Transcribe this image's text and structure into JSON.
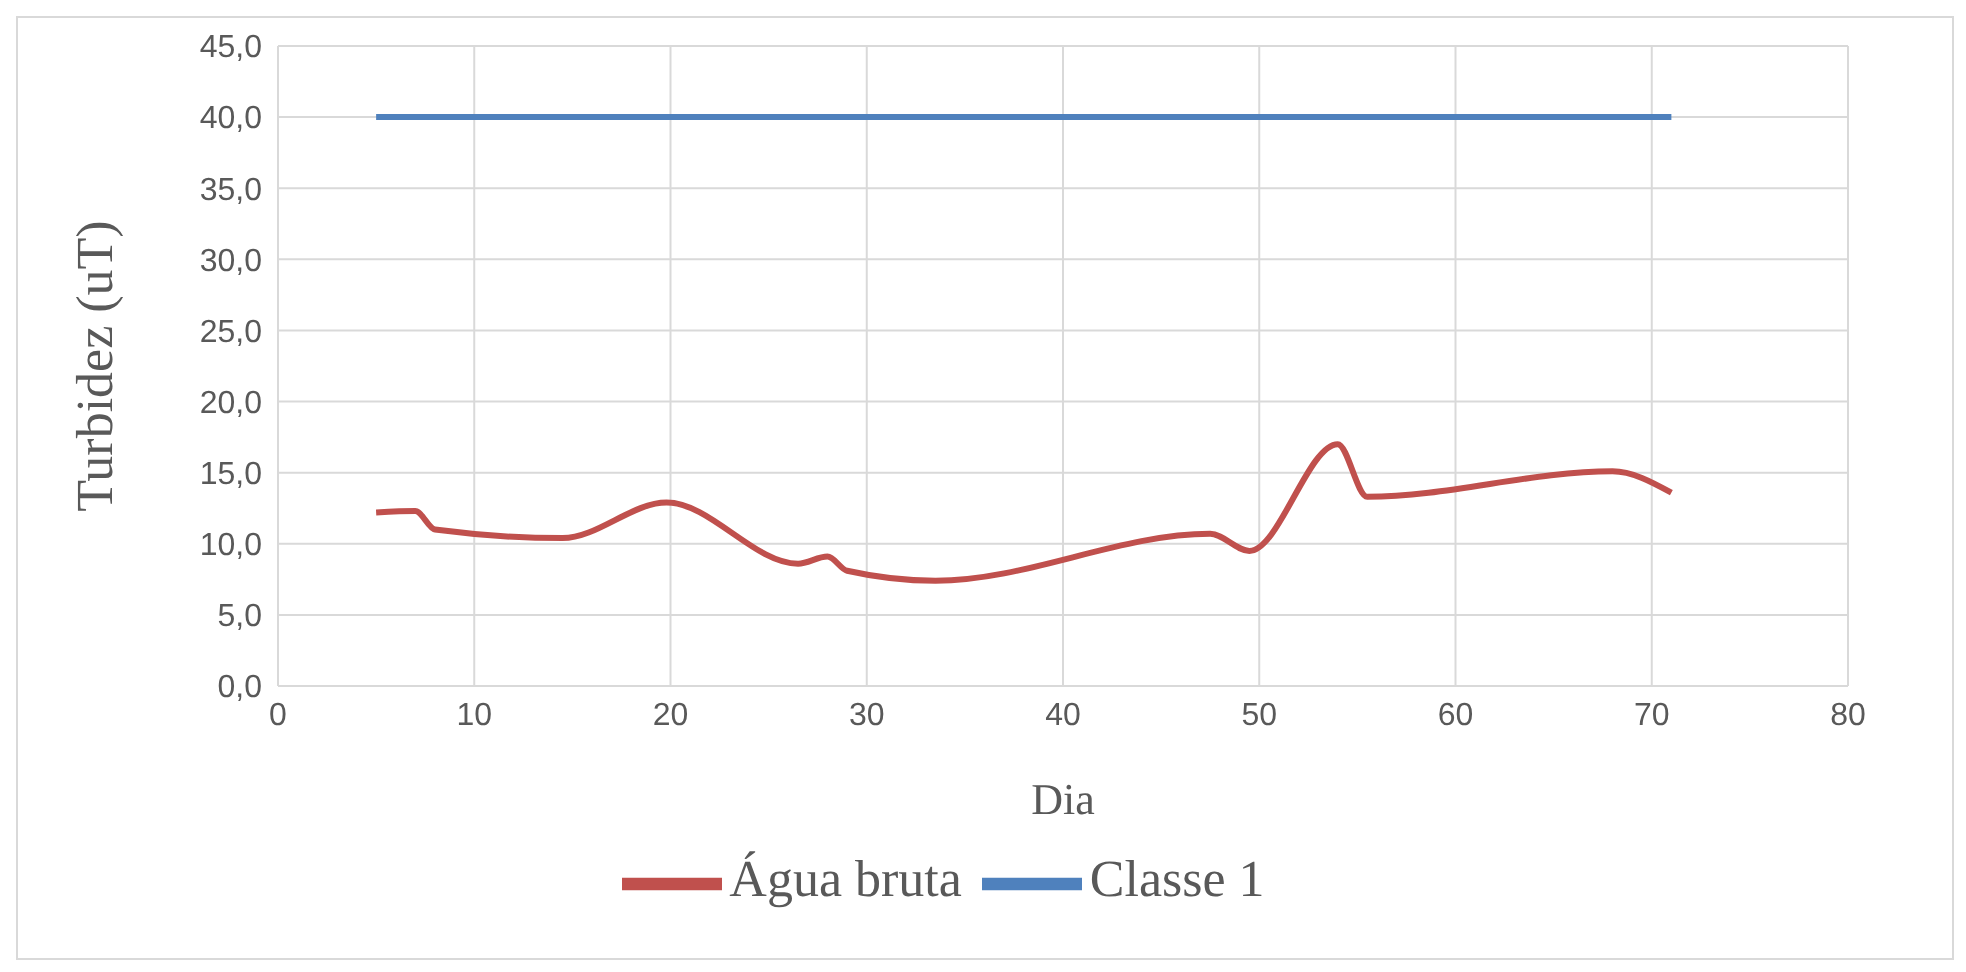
{
  "chart_data": {
    "type": "line",
    "xlabel": "Dia",
    "ylabel": "Turbidez (uT)",
    "series": [
      {
        "name": "Água bruta",
        "color": "#c0504d",
        "x": [
          5,
          7,
          8,
          14.5,
          19.8,
          26.5,
          28,
          29,
          33.5,
          47.5,
          49.5,
          54,
          55.5,
          68,
          71
        ],
        "values": [
          12.2,
          12.3,
          11.0,
          10.4,
          12.9,
          8.6,
          9.1,
          8.1,
          7.4,
          10.7,
          9.5,
          17.0,
          13.3,
          15.1,
          13.6
        ]
      },
      {
        "name": "Classe 1",
        "color": "#4f81bd",
        "x": [
          5,
          71
        ],
        "values": [
          40,
          40
        ]
      }
    ],
    "xlim": [
      0,
      80
    ],
    "xticks": [
      0,
      10,
      20,
      30,
      40,
      50,
      60,
      70,
      80
    ],
    "ylim": [
      0,
      45
    ],
    "yticks": [
      {
        "value": 0,
        "label": "0,0"
      },
      {
        "value": 5,
        "label": "5,0"
      },
      {
        "value": 10,
        "label": "10,0"
      },
      {
        "value": 15,
        "label": "15,0"
      },
      {
        "value": 20,
        "label": "20,0"
      },
      {
        "value": 25,
        "label": "25,0"
      },
      {
        "value": 30,
        "label": "30,0"
      },
      {
        "value": 35,
        "label": "35,0"
      },
      {
        "value": 40,
        "label": "40,0"
      },
      {
        "value": 45,
        "label": "45,0"
      }
    ],
    "grid": true,
    "legend": "bottom",
    "line_style": "solid",
    "marker": "none"
  }
}
